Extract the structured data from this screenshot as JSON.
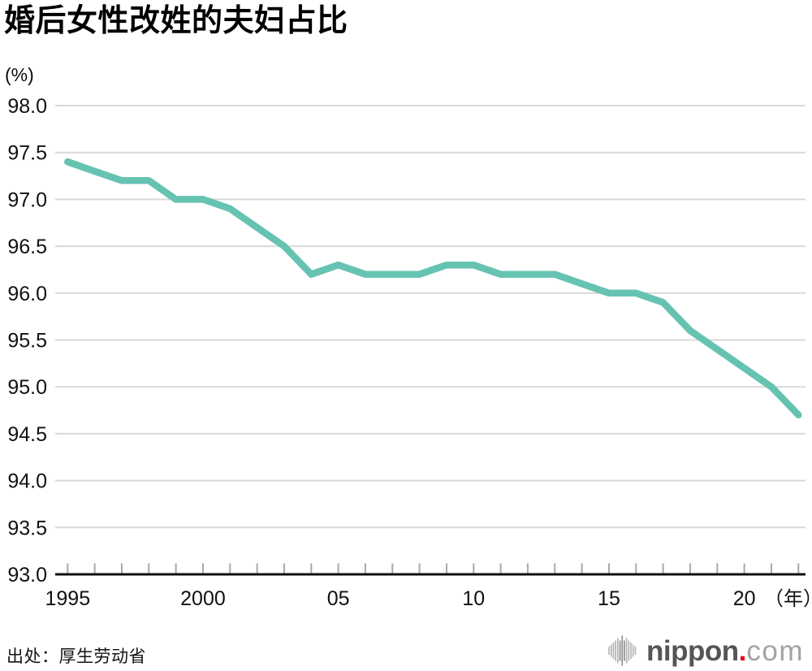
{
  "header": {
    "title": "婚后女性改姓的夫妇占比"
  },
  "chart_data": {
    "type": "line",
    "title": "婚后女性改姓的夫妇占比",
    "unit_label": "(%)",
    "x": [
      1995,
      1996,
      1997,
      1998,
      1999,
      2000,
      2001,
      2002,
      2003,
      2004,
      2005,
      2006,
      2007,
      2008,
      2009,
      2010,
      2011,
      2012,
      2013,
      2014,
      2015,
      2016,
      2017,
      2018,
      2019,
      2020,
      2021,
      2022
    ],
    "values": [
      97.4,
      97.3,
      97.2,
      97.2,
      97.0,
      97.0,
      96.9,
      96.7,
      96.5,
      96.2,
      96.3,
      96.2,
      96.2,
      96.2,
      96.3,
      96.3,
      96.2,
      96.2,
      96.2,
      96.1,
      96.0,
      96.0,
      95.9,
      95.6,
      95.4,
      95.2,
      95.0,
      94.7
    ],
    "ylim": [
      93.0,
      98.0
    ],
    "ytick_step": 0.5,
    "xtick_labels": {
      "1995": "1995",
      "2000": "2000",
      "2005": "05",
      "2010": "10",
      "2015": "15",
      "2020": "20"
    },
    "x_axis_suffix": "（年）",
    "grid": true,
    "legend": "none",
    "line_color": "#66c3b2",
    "grid_color": "#d9d9d9",
    "tick_color": "#a9a9a9",
    "axis_color": "#111111",
    "label_color": "#111111"
  },
  "footer": {
    "source": "出处：厚生劳动省",
    "logo": {
      "main": "nippon",
      "dot": ".",
      "suffix": "com"
    }
  }
}
